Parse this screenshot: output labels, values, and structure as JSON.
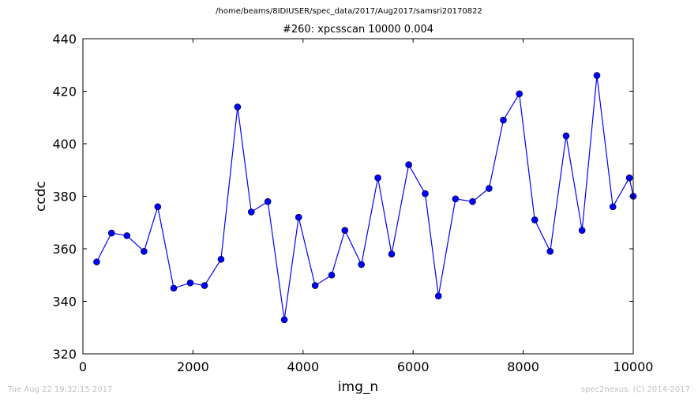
{
  "suptitle": "/home/beams/8IDIUSER/spec_data/2017/Aug2017/samsri20170822",
  "footer": {
    "timestamp": "Tue Aug 22 19:32:15 2017",
    "credit": "spec2nexus, (C) 2014-2017"
  },
  "chart_data": {
    "type": "line",
    "title": "#260: xpcsscan 10000 0.004",
    "xlabel": "img_n",
    "ylabel": "ccdc",
    "xlim": [
      0,
      10000
    ],
    "ylim": [
      320,
      440
    ],
    "xticks": [
      0,
      2000,
      4000,
      6000,
      8000,
      10000
    ],
    "yticks": [
      320,
      340,
      360,
      380,
      400,
      420,
      440
    ],
    "grid": false,
    "color": "#0000ff",
    "marker": "circle",
    "series": [
      {
        "x": [
          250,
          520,
          800,
          1110,
          1360,
          1650,
          1950,
          2210,
          2510,
          2810,
          3060,
          3360,
          3660,
          3920,
          4220,
          4520,
          4760,
          5060,
          5360,
          5610,
          5920,
          6220,
          6460,
          6770,
          7080,
          7380,
          7640,
          7930,
          8210,
          8490,
          8780,
          9070,
          9340,
          9630,
          9930,
          10000
        ],
        "y": [
          355,
          366,
          365,
          359,
          376,
          345,
          347,
          346,
          356,
          414,
          374,
          378,
          333,
          372,
          346,
          350,
          367,
          354,
          387,
          358,
          392,
          381,
          342,
          379,
          378,
          383,
          409,
          419,
          371,
          359,
          403,
          367,
          426,
          376,
          387,
          380
        ]
      }
    ]
  }
}
